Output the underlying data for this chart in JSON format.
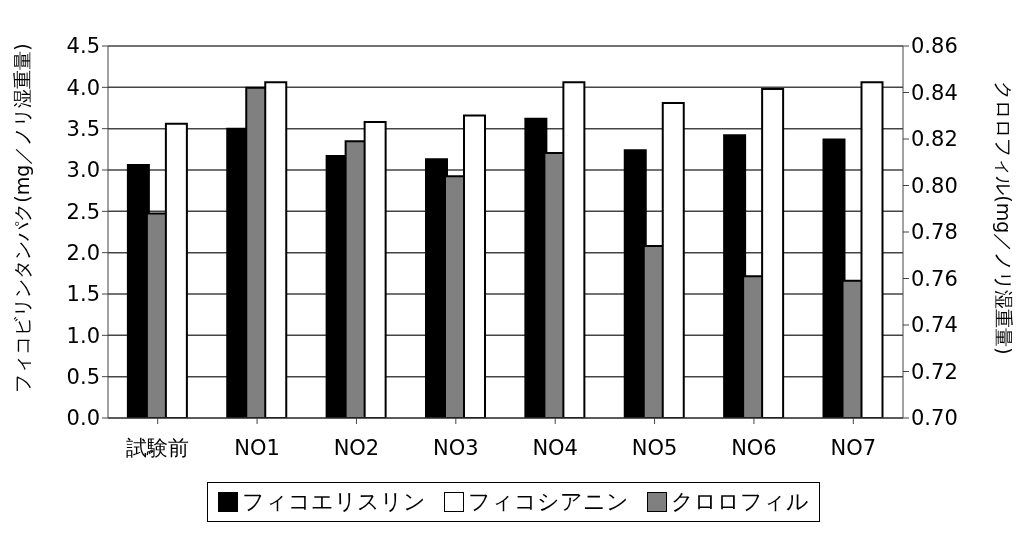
{
  "chart_data": {
    "type": "bar",
    "categories": [
      "試験前",
      "NO1",
      "NO2",
      "NO3",
      "NO4",
      "NO5",
      "NO6",
      "NO7"
    ],
    "ylabel": "フィコビリンタンパク(mg／ノリ湿重量)",
    "y2label": "クロロフィル(mg／ノリ湿重量)",
    "series": [
      {
        "name": "フィコエリスリン",
        "color": "#000000",
        "values": [
          3.06,
          3.5,
          3.17,
          3.13,
          3.62,
          3.24,
          3.42,
          3.37
        ]
      },
      {
        "name": "フィコシアニン",
        "color": "#ffffff",
        "values": [
          3.56,
          4.06,
          3.58,
          3.66,
          4.06,
          3.81,
          3.98,
          4.06
        ]
      },
      {
        "name": "クロロフィル",
        "color": "#808080",
        "axis": "y2",
        "values": [
          0.788,
          0.842,
          0.819,
          0.804,
          0.814,
          0.774,
          0.761,
          0.759
        ]
      }
    ],
    "ylim": [
      0,
      4.5
    ],
    "yticks": [
      {
        "value": 0,
        "label": "0.0"
      },
      0.5,
      {
        "value": 1,
        "label": "1.0"
      },
      1.5,
      {
        "value": 2,
        "label": "2.0"
      },
      2.5,
      {
        "value": 3,
        "label": "3.0"
      },
      3.5,
      {
        "value": 4,
        "label": "4.0"
      },
      4.5
    ],
    "y2lim": [
      0.7,
      0.86
    ],
    "y2ticks": [
      {
        "value": 0.7,
        "label": "0.70"
      },
      0.72,
      0.74,
      0.76,
      0.78,
      {
        "value": 0.8,
        "label": "0.80"
      },
      0.82,
      0.84,
      0.86
    ],
    "grid": "y",
    "legend": "bottom"
  }
}
